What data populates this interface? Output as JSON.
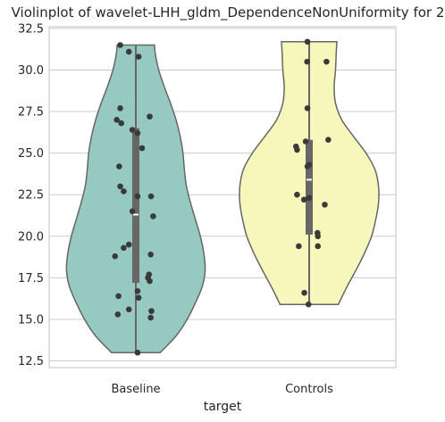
{
  "chart_data": {
    "type": "violin",
    "title": "Violinplot of wavelet-LHH_gldm_DependenceNonUniformity for 2",
    "xlabel": "target",
    "ylabel": "",
    "categories": [
      "Baseline",
      "Controls"
    ],
    "ylim": [
      12.1,
      32.6
    ],
    "yticks": [
      12.5,
      15.0,
      17.5,
      20.0,
      22.5,
      25.0,
      27.5,
      30.0,
      32.5
    ],
    "ytick_labels": [
      "12.5",
      "15.0",
      "17.5",
      "20.0",
      "22.5",
      "25.0",
      "27.5",
      "30.0",
      "32.5"
    ],
    "grid": true,
    "colors": {
      "Baseline": "#96cac0",
      "Controls": "#f7f7bb",
      "outline": "#666666",
      "box": "#666666",
      "points": "#3a3a3a"
    },
    "series": [
      {
        "name": "Baseline",
        "range": [
          13.0,
          31.5
        ],
        "quartiles": [
          17.2,
          26.5
        ],
        "median": 21.3,
        "density": [
          [
            13.0,
            0.35
          ],
          [
            14.0,
            0.58
          ],
          [
            15.0,
            0.74
          ],
          [
            16.0,
            0.86
          ],
          [
            17.0,
            0.96
          ],
          [
            18.0,
            1.0
          ],
          [
            19.0,
            0.98
          ],
          [
            20.0,
            0.93
          ],
          [
            21.0,
            0.86
          ],
          [
            22.0,
            0.79
          ],
          [
            23.0,
            0.73
          ],
          [
            24.0,
            0.7
          ],
          [
            25.0,
            0.68
          ],
          [
            26.0,
            0.64
          ],
          [
            27.0,
            0.58
          ],
          [
            28.0,
            0.5
          ],
          [
            29.0,
            0.41
          ],
          [
            30.0,
            0.33
          ],
          [
            31.0,
            0.28
          ],
          [
            31.5,
            0.27
          ]
        ],
        "points": [
          31.5,
          31.1,
          30.8,
          27.7,
          27.2,
          27.0,
          26.8,
          26.4,
          26.2,
          25.3,
          24.2,
          23.0,
          22.7,
          22.4,
          22.4,
          21.5,
          21.2,
          19.5,
          19.3,
          18.9,
          18.8,
          17.7,
          17.5,
          17.3,
          16.7,
          16.4,
          16.3,
          15.6,
          15.5,
          15.3,
          15.1,
          13.0
        ],
        "point_offsets": [
          -0.45,
          -0.2,
          0.08,
          -0.45,
          0.4,
          -0.55,
          -0.42,
          -0.1,
          0.05,
          0.18,
          -0.48,
          -0.45,
          -0.35,
          0.05,
          0.44,
          -0.1,
          0.5,
          -0.2,
          -0.35,
          0.43,
          -0.6,
          0.38,
          0.35,
          0.4,
          0.05,
          -0.5,
          0.08,
          -0.2,
          0.45,
          -0.52,
          0.43,
          0.05
        ]
      },
      {
        "name": "Controls",
        "range": [
          15.9,
          31.7
        ],
        "quartiles": [
          20.1,
          25.8
        ],
        "median": 23.4,
        "density": [
          [
            15.9,
            0.42
          ],
          [
            17.0,
            0.55
          ],
          [
            18.0,
            0.68
          ],
          [
            19.0,
            0.8
          ],
          [
            20.0,
            0.9
          ],
          [
            21.0,
            0.96
          ],
          [
            22.0,
            1.0
          ],
          [
            23.0,
            1.0
          ],
          [
            24.0,
            0.95
          ],
          [
            25.0,
            0.82
          ],
          [
            26.0,
            0.64
          ],
          [
            27.0,
            0.47
          ],
          [
            28.0,
            0.38
          ],
          [
            29.0,
            0.36
          ],
          [
            30.0,
            0.38
          ],
          [
            31.0,
            0.39
          ],
          [
            31.7,
            0.4
          ]
        ],
        "points": [
          31.7,
          30.5,
          30.5,
          27.7,
          25.8,
          25.7,
          25.4,
          25.2,
          24.3,
          24.2,
          22.5,
          22.3,
          22.2,
          21.9,
          20.2,
          20.0,
          19.4,
          19.4,
          16.6,
          15.9
        ],
        "point_offsets": [
          -0.05,
          -0.06,
          0.5,
          -0.05,
          0.55,
          -0.1,
          -0.38,
          -0.35,
          0.0,
          -0.05,
          -0.35,
          0.0,
          -0.15,
          0.45,
          0.24,
          0.25,
          -0.3,
          0.25,
          -0.14,
          -0.02
        ]
      }
    ]
  }
}
